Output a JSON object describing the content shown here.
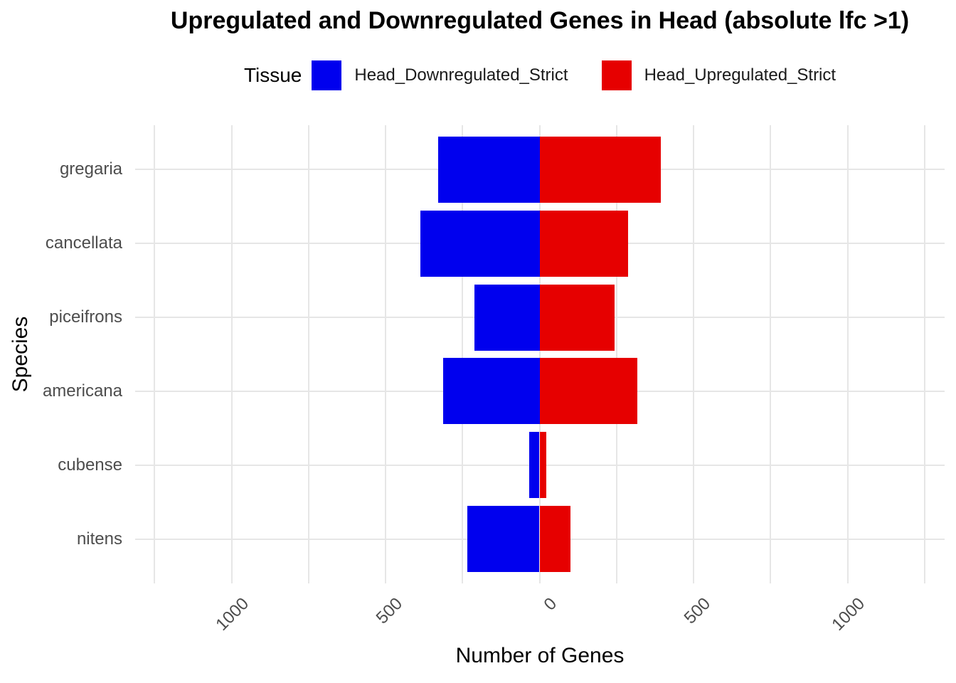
{
  "legend": {
    "title": "Tissue",
    "position": "top",
    "items": [
      {
        "label": "Head_Downregulated_Strict",
        "color": "#0000ee"
      },
      {
        "label": "Head_Upregulated_Strict",
        "color": "#e60000"
      }
    ]
  },
  "colors": {
    "downregulated": "#0000ee",
    "upregulated": "#e60000",
    "gridline": "#e6e6e6",
    "tick_text": "#4d4d4d",
    "background": "#ffffff"
  },
  "chart_data": {
    "type": "bar",
    "orientation": "horizontal-diverging",
    "title": "Upregulated and Downregulated Genes in Head (absolute lfc >1)",
    "xlabel": "Number of Genes",
    "ylabel": "Species",
    "categories": [
      "gregaria",
      "cancellata",
      "piceifrons",
      "americana",
      "cubense",
      "nitens"
    ],
    "series": [
      {
        "name": "Head_Downregulated_Strict",
        "direction": "negative",
        "color": "#0000ee",
        "values": [
          329,
          388,
          212,
          313,
          34,
          234
        ]
      },
      {
        "name": "Head_Upregulated_Strict",
        "direction": "positive",
        "color": "#e60000",
        "values": [
          394,
          287,
          243,
          318,
          22,
          101
        ]
      }
    ],
    "x_ticks": [
      -1000,
      -500,
      0,
      500,
      1000
    ],
    "x_tick_labels": [
      "1000",
      "500",
      "0",
      "500",
      "1000"
    ],
    "xlim": [
      -1313,
      1315
    ],
    "grid_interval": 250,
    "grid": true,
    "bar_width_fraction": 0.895,
    "legend_position": "top"
  }
}
